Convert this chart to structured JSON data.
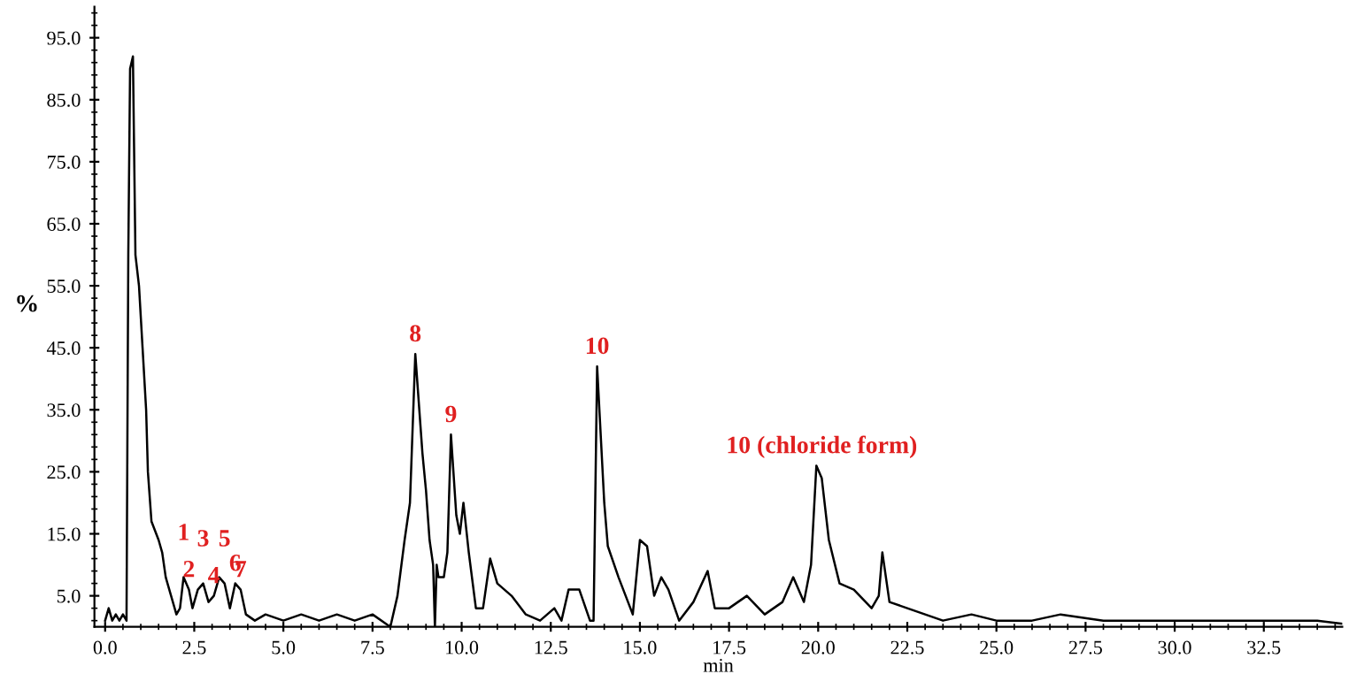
{
  "chart_data": {
    "type": "line",
    "xlabel": "min",
    "ylabel": "%",
    "xlim": [
      -0.3,
      34.7
    ],
    "ylim": [
      0,
      100
    ],
    "xticks": [
      {
        "value": 0,
        "label": "0.0"
      },
      {
        "value": 2.5,
        "label": "2.5"
      },
      {
        "value": 5,
        "label": "5.0"
      },
      {
        "value": 7.5,
        "label": "7.5"
      },
      {
        "value": 10,
        "label": "10.0"
      },
      {
        "value": 12.5,
        "label": "12.5"
      },
      {
        "value": 15,
        "label": "15.0"
      },
      {
        "value": 17.5,
        "label": "17.5"
      },
      {
        "value": 20,
        "label": "20.0"
      },
      {
        "value": 22.5,
        "label": "22.5"
      },
      {
        "value": 25,
        "label": "25.0"
      },
      {
        "value": 27.5,
        "label": "27.5"
      },
      {
        "value": 30,
        "label": "30.0"
      },
      {
        "value": 32.5,
        "label": "32.5"
      }
    ],
    "yticks": [
      {
        "value": 5,
        "label": "5.0"
      },
      {
        "value": 15,
        "label": "15.0"
      },
      {
        "value": 25,
        "label": "25.0"
      },
      {
        "value": 35,
        "label": "35.0"
      },
      {
        "value": 45,
        "label": "45.0"
      },
      {
        "value": 55,
        "label": "55.0"
      },
      {
        "value": 65,
        "label": "65.0"
      },
      {
        "value": 75,
        "label": "75.0"
      },
      {
        "value": 85,
        "label": "85.0"
      },
      {
        "value": 95,
        "label": "95.0"
      }
    ],
    "grid": false,
    "legend": false,
    "marker": "none",
    "line_style": "solid",
    "series": [
      {
        "color": "#000000",
        "x": [
          0.0,
          0.1,
          0.2,
          0.3,
          0.4,
          0.5,
          0.6,
          0.65,
          0.7,
          0.78,
          0.85,
          0.95,
          1.05,
          1.15,
          1.2,
          1.3,
          1.5,
          1.6,
          1.7,
          1.85,
          2.0,
          2.1,
          2.2,
          2.35,
          2.45,
          2.6,
          2.75,
          2.9,
          3.05,
          3.2,
          3.35,
          3.5,
          3.65,
          3.8,
          3.95,
          4.2,
          4.5,
          5.0,
          5.5,
          6.0,
          6.5,
          7.0,
          7.5,
          8.0,
          8.2,
          8.4,
          8.55,
          8.7,
          8.9,
          9.0,
          9.1,
          9.2,
          9.25,
          9.3,
          9.35,
          9.5,
          9.6,
          9.7,
          9.85,
          9.95,
          10.05,
          10.2,
          10.4,
          10.6,
          10.8,
          11.0,
          11.4,
          11.8,
          12.2,
          12.6,
          12.8,
          13.0,
          13.3,
          13.6,
          13.7,
          13.8,
          14.0,
          14.1,
          14.4,
          14.8,
          15.0,
          15.2,
          15.4,
          15.6,
          15.8,
          16.1,
          16.5,
          16.9,
          17.1,
          17.5,
          18.0,
          18.5,
          19.0,
          19.3,
          19.6,
          19.8,
          19.95,
          20.1,
          20.3,
          20.6,
          21.0,
          21.5,
          21.7,
          21.8,
          22.0,
          22.5,
          23.0,
          23.5,
          24.3,
          25.0,
          26.0,
          26.8,
          28.0,
          29.0,
          30.0,
          31.0,
          32.0,
          33.0,
          34.0,
          34.7
        ],
        "values": [
          1,
          3,
          1,
          2,
          1,
          2,
          1,
          60,
          90,
          92,
          60,
          55,
          45,
          35,
          25,
          17,
          14,
          12,
          8,
          5,
          2,
          3,
          8,
          6,
          3,
          6,
          7,
          4,
          5,
          8,
          7,
          3,
          7,
          6,
          2,
          1,
          2,
          1,
          2,
          1,
          2,
          1,
          2,
          0,
          5,
          14,
          20,
          44,
          28,
          22,
          14,
          10,
          0,
          10,
          8,
          8,
          12,
          31,
          18,
          15,
          20,
          12,
          3,
          3,
          11,
          7,
          5,
          2,
          1,
          3,
          1,
          6,
          6,
          1,
          1,
          42,
          20,
          13,
          8,
          2,
          14,
          13,
          5,
          8,
          6,
          1,
          4,
          9,
          3,
          3,
          5,
          2,
          4,
          8,
          4,
          10,
          26,
          24,
          14,
          7,
          6,
          3,
          5,
          12,
          4,
          3,
          2,
          1,
          2,
          1,
          1,
          2,
          1,
          1,
          1,
          1,
          1,
          1,
          1,
          0.5
        ]
      }
    ],
    "annotations": [
      {
        "text": "1",
        "x": 2.2,
        "y": 8
      },
      {
        "text": "2",
        "x": 2.35,
        "y": 6
      },
      {
        "text": "3",
        "x": 2.75,
        "y": 7
      },
      {
        "text": "4",
        "x": 3.05,
        "y": 5
      },
      {
        "text": "5",
        "x": 3.35,
        "y": 7
      },
      {
        "text": "6",
        "x": 3.65,
        "y": 7
      },
      {
        "text": "7",
        "x": 3.8,
        "y": 6
      },
      {
        "text": "8",
        "x": 8.7,
        "y": 44
      },
      {
        "text": "9",
        "x": 9.7,
        "y": 31
      },
      {
        "text": "10",
        "x": 13.8,
        "y": 42
      },
      {
        "text": "10 (chloride form)",
        "x": 20.1,
        "y": 26
      }
    ]
  }
}
